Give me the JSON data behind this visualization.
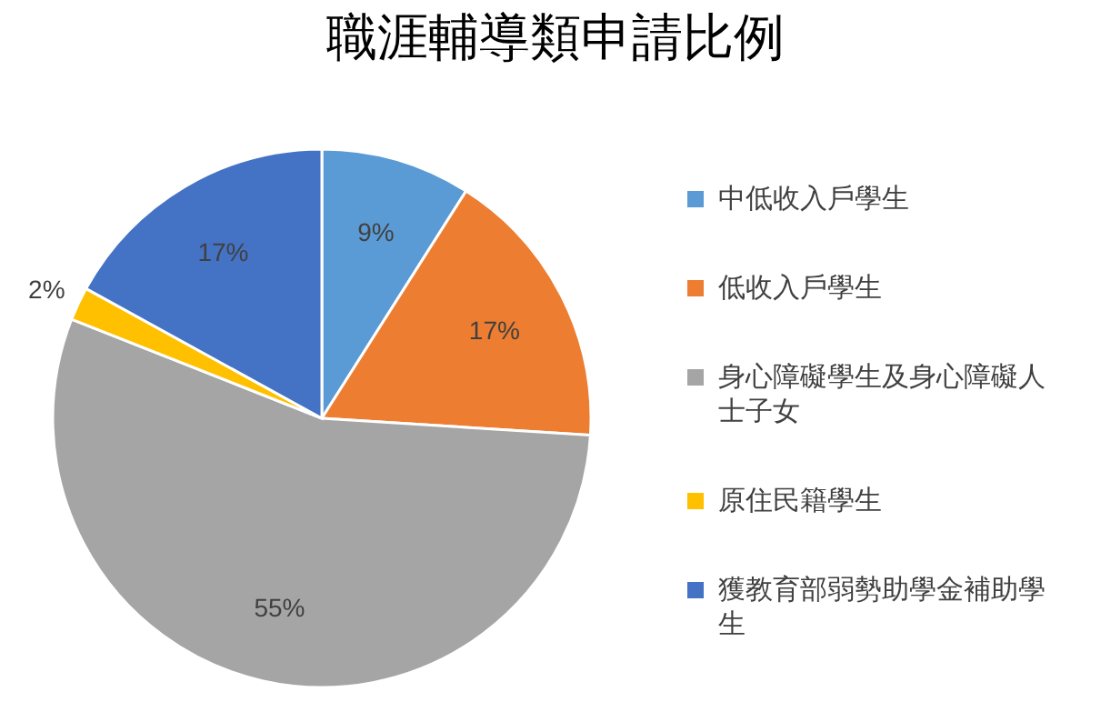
{
  "chart_data": {
    "type": "pie",
    "title": "職涯輔導類申請比例",
    "categories": [
      "中低收入戶學生",
      "低收入戶學生",
      "身心障礙學生及身心障礙人士子女",
      "原住民籍學生",
      "獲教育部弱勢助學金補助學生"
    ],
    "values": [
      9,
      17,
      55,
      2,
      17
    ],
    "colors": [
      "#5b9bd5",
      "#ed7d31",
      "#a5a5a5",
      "#ffc000",
      "#4472c4"
    ],
    "value_labels": [
      "9%",
      "17%",
      "55%",
      "2%",
      "17%"
    ],
    "legend": "right"
  }
}
